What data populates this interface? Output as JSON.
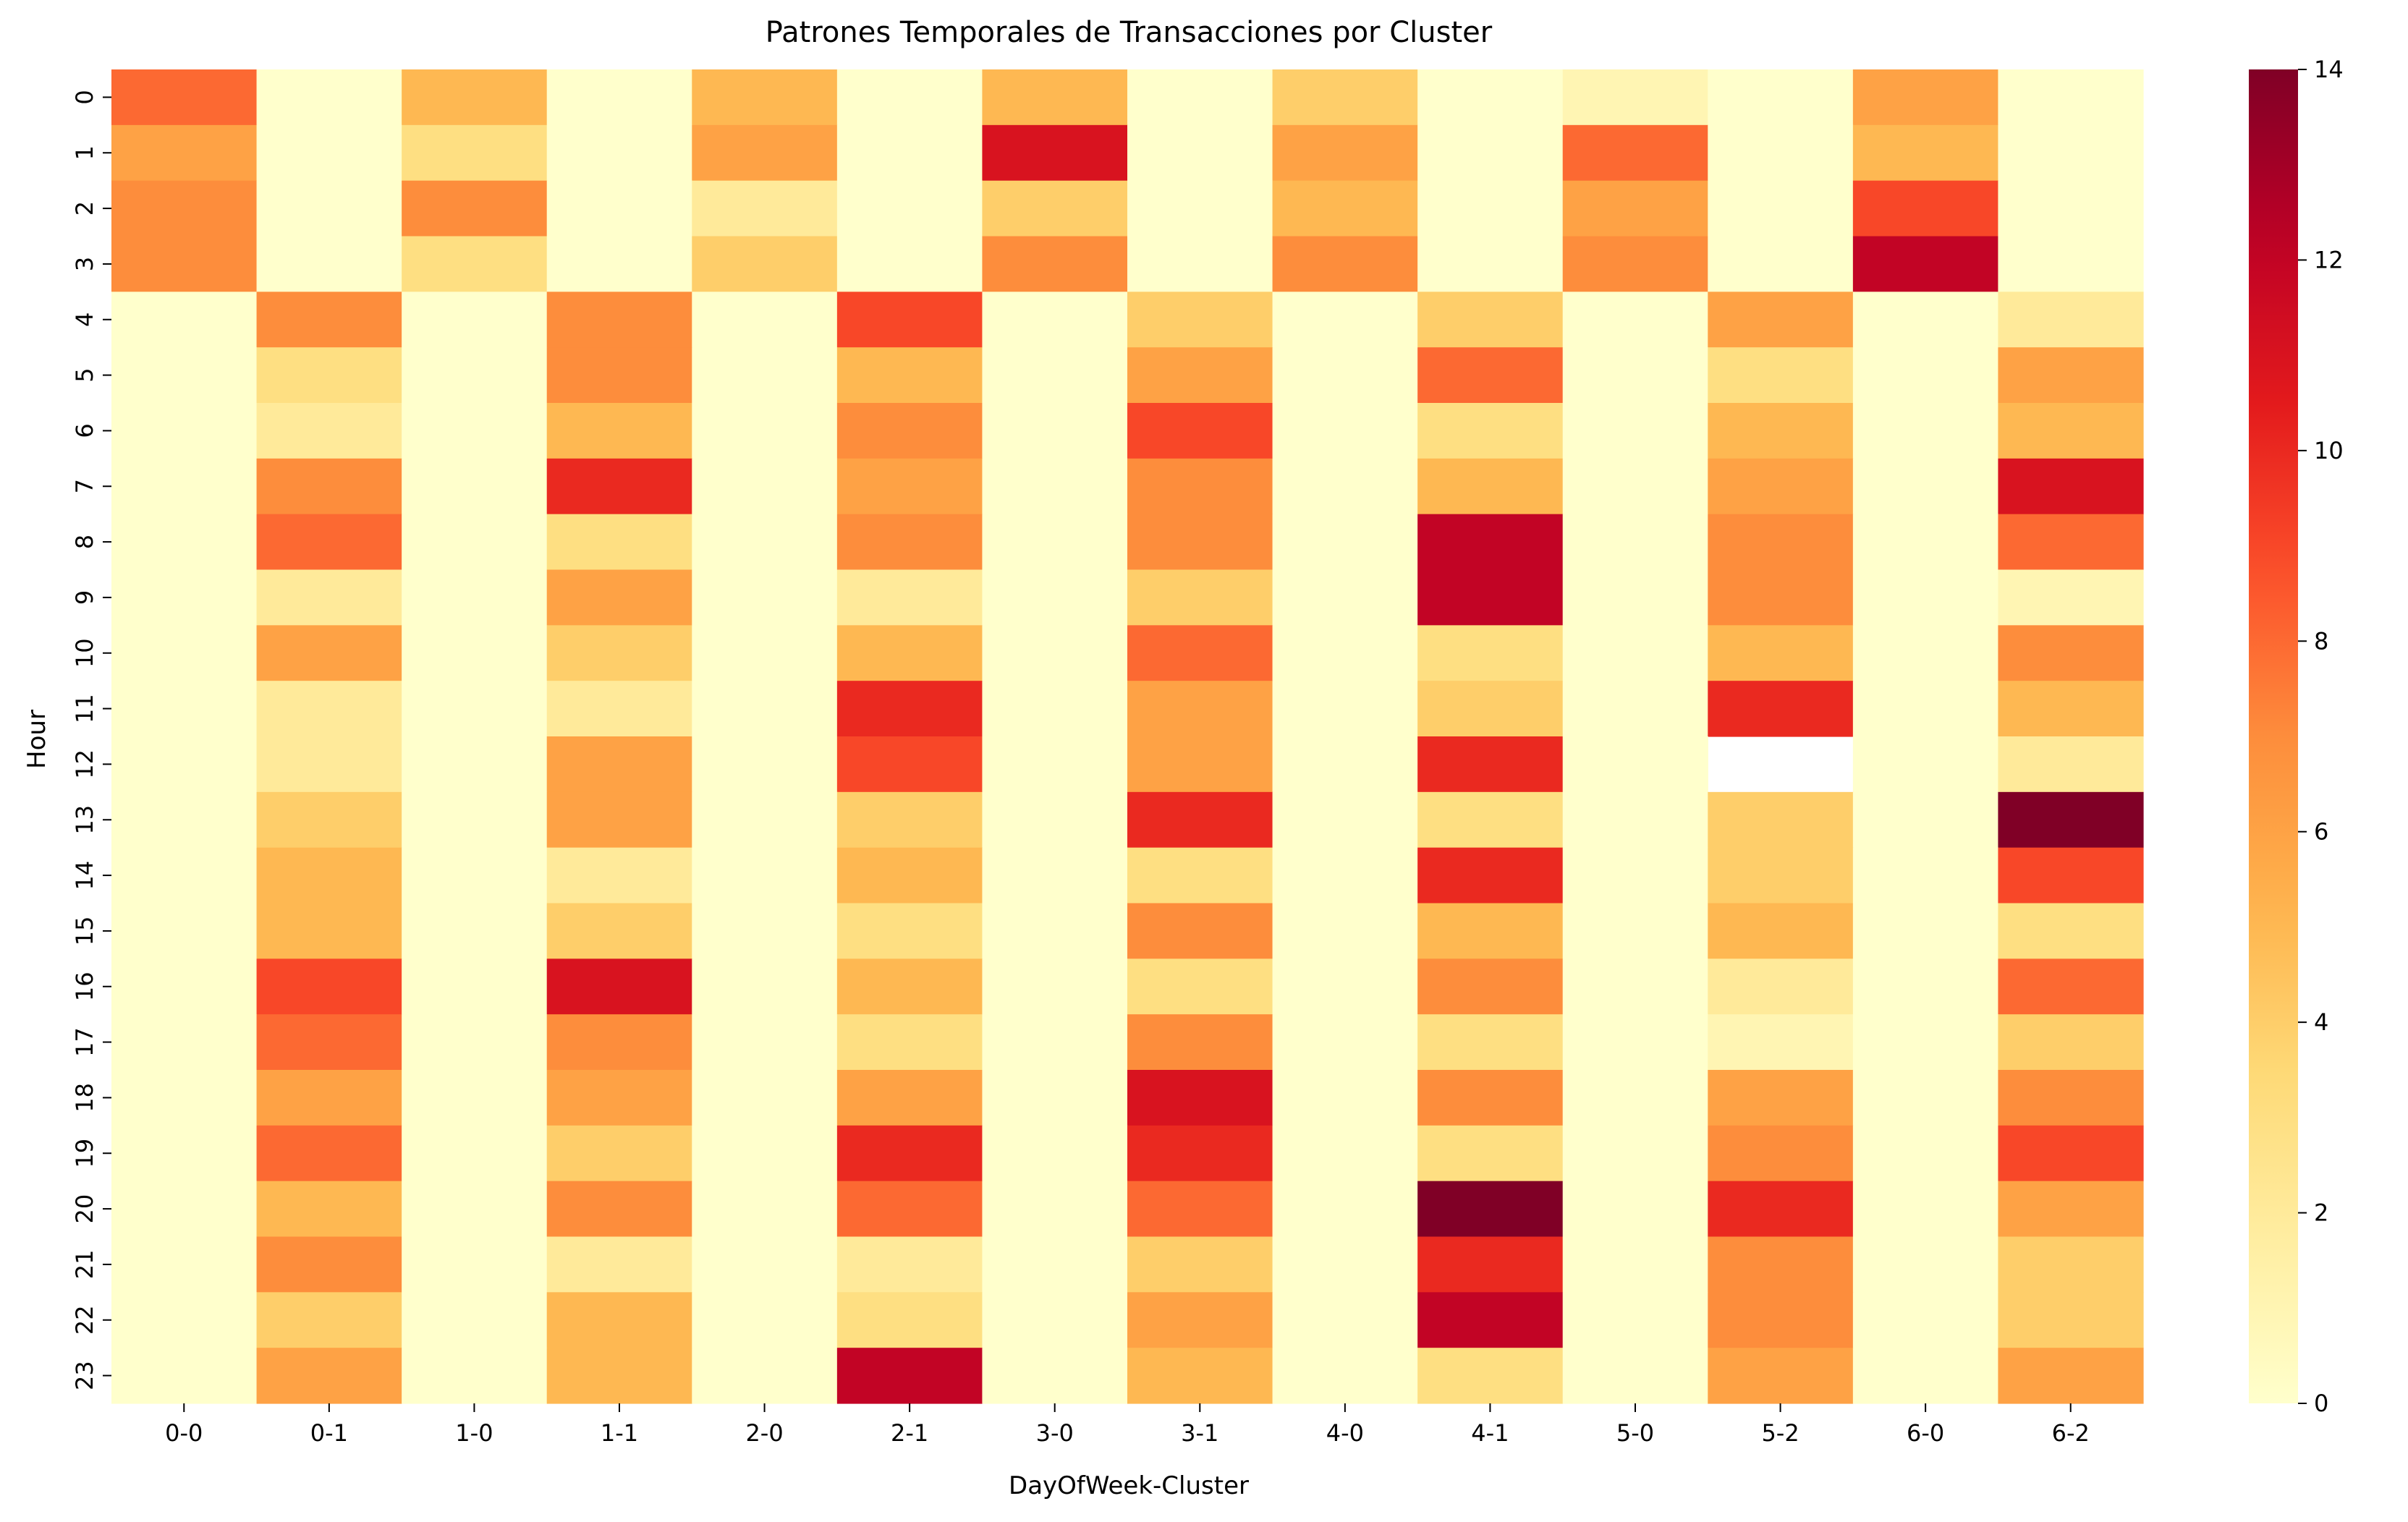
{
  "chart_data": {
    "type": "heatmap",
    "title": "Patrones Temporales de Transacciones por Cluster",
    "xlabel": "DayOfWeek-Cluster",
    "ylabel": "Hour",
    "x_categories": [
      "0-0",
      "0-1",
      "1-0",
      "1-1",
      "2-0",
      "2-1",
      "3-0",
      "3-1",
      "4-0",
      "4-1",
      "5-0",
      "5-2",
      "6-0",
      "6-2"
    ],
    "y_categories": [
      "0",
      "1",
      "2",
      "3",
      "4",
      "5",
      "6",
      "7",
      "8",
      "9",
      "10",
      "11",
      "12",
      "13",
      "14",
      "15",
      "16",
      "17",
      "18",
      "19",
      "20",
      "21",
      "22",
      "23"
    ],
    "colormap": "YlOrRd",
    "vmin": 0,
    "vmax": 14,
    "colorbar_ticks": [
      "0",
      "2",
      "4",
      "6",
      "8",
      "10",
      "12",
      "14"
    ],
    "values": [
      [
        8,
        0,
        5,
        0,
        5,
        0,
        5,
        0,
        4,
        0,
        1,
        0,
        6,
        0
      ],
      [
        6,
        0,
        3,
        0,
        6,
        0,
        11,
        0,
        6,
        0,
        8,
        0,
        5,
        0
      ],
      [
        7,
        0,
        7,
        0,
        2,
        0,
        4,
        0,
        5,
        0,
        6,
        0,
        9,
        0
      ],
      [
        7,
        0,
        3,
        0,
        4,
        0,
        7,
        0,
        7,
        0,
        7,
        0,
        12,
        0
      ],
      [
        0,
        7,
        0,
        7,
        0,
        9,
        0,
        4,
        0,
        4,
        0,
        6,
        0,
        2
      ],
      [
        0,
        3,
        0,
        7,
        0,
        5,
        0,
        6,
        0,
        8,
        0,
        3,
        0,
        6
      ],
      [
        0,
        2,
        0,
        5,
        0,
        7,
        0,
        9,
        0,
        3,
        0,
        5,
        0,
        5
      ],
      [
        0,
        7,
        0,
        10,
        0,
        6,
        0,
        7,
        0,
        5,
        0,
        6,
        0,
        11
      ],
      [
        0,
        8,
        0,
        3,
        0,
        7,
        0,
        7,
        0,
        12,
        0,
        7,
        0,
        8
      ],
      [
        0,
        2,
        0,
        6,
        0,
        2,
        0,
        4,
        0,
        12,
        0,
        7,
        0,
        1
      ],
      [
        0,
        6,
        0,
        4,
        0,
        5,
        0,
        8,
        0,
        3,
        0,
        5,
        0,
        7
      ],
      [
        0,
        2,
        0,
        2,
        0,
        10,
        0,
        6,
        0,
        4,
        0,
        10,
        0,
        5
      ],
      [
        0,
        2,
        0,
        6,
        0,
        9,
        0,
        6,
        0,
        10,
        0,
        null,
        0,
        2
      ],
      [
        0,
        4,
        0,
        6,
        0,
        4,
        0,
        10,
        0,
        3,
        0,
        4,
        0,
        14
      ],
      [
        0,
        5,
        0,
        2,
        0,
        5,
        0,
        3,
        0,
        10,
        0,
        4,
        0,
        9
      ],
      [
        0,
        5,
        0,
        4,
        0,
        3,
        0,
        7,
        0,
        5,
        0,
        5,
        0,
        3
      ],
      [
        0,
        9,
        0,
        11,
        0,
        5,
        0,
        3,
        0,
        7,
        0,
        2,
        0,
        8
      ],
      [
        0,
        8,
        0,
        7,
        0,
        3,
        0,
        7,
        0,
        3,
        0,
        1,
        0,
        4
      ],
      [
        0,
        6,
        0,
        6,
        0,
        6,
        0,
        11,
        0,
        7,
        0,
        6,
        0,
        7
      ],
      [
        0,
        8,
        0,
        4,
        0,
        10,
        0,
        10,
        0,
        3,
        0,
        7,
        0,
        9
      ],
      [
        0,
        5,
        0,
        7,
        0,
        8,
        0,
        8,
        0,
        14,
        0,
        10,
        0,
        6
      ],
      [
        0,
        7,
        0,
        2,
        0,
        2,
        0,
        4,
        0,
        10,
        0,
        7,
        0,
        4
      ],
      [
        0,
        4,
        0,
        5,
        0,
        3,
        0,
        6,
        0,
        12,
        0,
        7,
        0,
        4
      ],
      [
        0,
        6,
        0,
        5,
        0,
        12,
        0,
        5,
        0,
        3,
        0,
        6,
        0,
        6
      ]
    ]
  }
}
